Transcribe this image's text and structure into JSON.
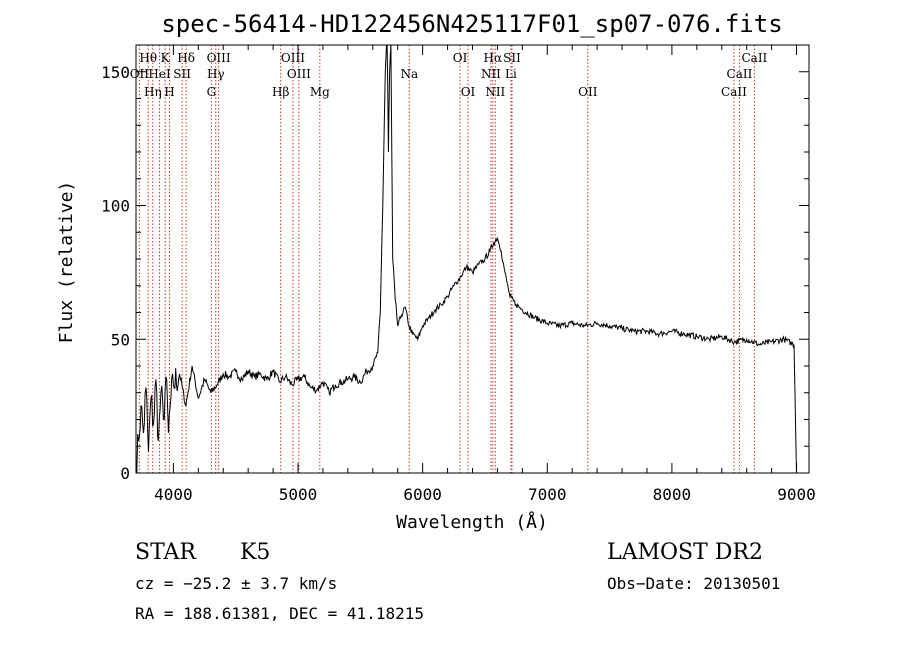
{
  "chart_data": {
    "type": "line",
    "title": "spec-56414-HD122456N425117F01_sp07-076.fits",
    "xlabel": "Wavelength (Å)",
    "ylabel": "Flux (relative)",
    "xlim": [
      3700,
      9100
    ],
    "ylim": [
      0,
      160
    ],
    "xticks": [
      4000,
      5000,
      6000,
      7000,
      8000,
      9000
    ],
    "yticks": [
      0,
      50,
      100,
      150
    ],
    "grid": false,
    "series": [
      {
        "x": [
          3700,
          3720,
          3740,
          3760,
          3780,
          3800,
          3820,
          3840,
          3860,
          3880,
          3900,
          3920,
          3940,
          3960,
          3980,
          4000,
          4050,
          4100,
          4150,
          4200,
          4250,
          4300,
          4350,
          4400,
          4450,
          4500,
          4550,
          4600,
          4650,
          4700,
          4750,
          4800,
          4850,
          4900,
          4950,
          5000,
          5050,
          5100,
          5150,
          5200,
          5250,
          5300,
          5350,
          5400,
          5450,
          5500,
          5550,
          5600,
          5640,
          5660,
          5680,
          5700,
          5715,
          5725,
          5735,
          5745,
          5760,
          5780,
          5800,
          5830,
          5860,
          5890,
          5920,
          5960,
          6000,
          6050,
          6100,
          6150,
          6200,
          6250,
          6300,
          6350,
          6400,
          6450,
          6500,
          6540,
          6570,
          6600,
          6630,
          6660,
          6700,
          6750,
          6800,
          6900,
          7000,
          7100,
          7200,
          7300,
          7400,
          7500,
          7600,
          7700,
          7800,
          7900,
          8000,
          8100,
          8200,
          8300,
          8400,
          8500,
          8600,
          8700,
          8800,
          8900,
          8980,
          9000
        ],
        "y": [
          2,
          12,
          25,
          15,
          32,
          8,
          28,
          18,
          35,
          12,
          30,
          20,
          36,
          15,
          28,
          33,
          37,
          25,
          40,
          28,
          35,
          30,
          33,
          37,
          36,
          38,
          35,
          38,
          36,
          37,
          35,
          38,
          34,
          36,
          33,
          35,
          36,
          32,
          31,
          34,
          30,
          33,
          34,
          35,
          36,
          34,
          38,
          40,
          45,
          60,
          100,
          150,
          165,
          120,
          150,
          160,
          80,
          65,
          55,
          59,
          62,
          55,
          52,
          50,
          55,
          58,
          61,
          63,
          66,
          70,
          73,
          77,
          75,
          78,
          80,
          83,
          86,
          88,
          83,
          75,
          66,
          63,
          61,
          58,
          56,
          55,
          56,
          55,
          56,
          55,
          54,
          53,
          53,
          52,
          53,
          52,
          51,
          50,
          51,
          49,
          50,
          48,
          49,
          50,
          48,
          0
        ]
      }
    ],
    "line_color": "#000000",
    "line_marker_color": "#c0392b",
    "spectral_lines": [
      {
        "label": "Hθ",
        "wavelength": 3798,
        "row": 1
      },
      {
        "label": "K",
        "wavelength": 3934,
        "row": 1
      },
      {
        "label": "Hδ",
        "wavelength": 4102,
        "row": 1
      },
      {
        "label": "OIII",
        "wavelength": 4363,
        "row": 1
      },
      {
        "label": "OIII",
        "wavelength": 4959,
        "row": 1
      },
      {
        "label": "OI",
        "wavelength": 6300,
        "row": 1
      },
      {
        "label": "Hα",
        "wavelength": 6563,
        "row": 1
      },
      {
        "label": "SII",
        "wavelength": 6717,
        "row": 1
      },
      {
        "label": "CaII",
        "wavelength": 8662,
        "row": 1
      },
      {
        "label": "OII",
        "wavelength": 3727,
        "row": 2
      },
      {
        "label": "HeI",
        "wavelength": 3889,
        "row": 2
      },
      {
        "label": "SII",
        "wavelength": 4070,
        "row": 2
      },
      {
        "label": "Hγ",
        "wavelength": 4340,
        "row": 2
      },
      {
        "label": "OIII",
        "wavelength": 5007,
        "row": 2
      },
      {
        "label": "Na",
        "wavelength": 5893,
        "row": 2
      },
      {
        "label": "NII",
        "wavelength": 6548,
        "row": 2
      },
      {
        "label": "Li",
        "wavelength": 6708,
        "row": 2
      },
      {
        "label": "CaII",
        "wavelength": 8542,
        "row": 2
      },
      {
        "label": "Hη",
        "wavelength": 3835,
        "row": 3
      },
      {
        "label": "H",
        "wavelength": 3969,
        "row": 3
      },
      {
        "label": "G",
        "wavelength": 4305,
        "row": 3
      },
      {
        "label": "Hβ",
        "wavelength": 4861,
        "row": 3
      },
      {
        "label": "Mg",
        "wavelength": 5175,
        "row": 3
      },
      {
        "label": "OI",
        "wavelength": 6364,
        "row": 3
      },
      {
        "label": "NII",
        "wavelength": 6583,
        "row": 3
      },
      {
        "label": "OII",
        "wavelength": 7325,
        "row": 3
      },
      {
        "label": "CaII",
        "wavelength": 8498,
        "row": 3
      }
    ]
  },
  "info": {
    "object_class": "STAR",
    "subclass": "K5",
    "survey": "LAMOST DR2",
    "redshift": "cz = −25.2 ± 3.7 km/s",
    "obs_date": "Obs−Date: 20130501",
    "coords": "RA = 188.61381, DEC =  41.18215"
  }
}
